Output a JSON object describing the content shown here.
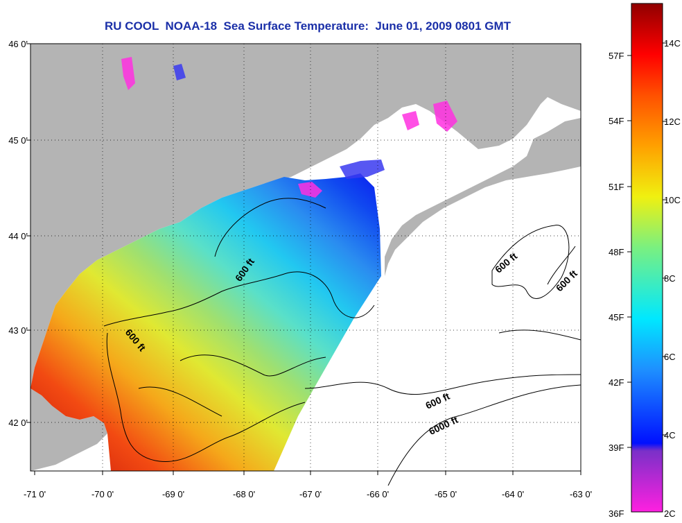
{
  "title": "RU COOL  NOAA-18  Sea Surface Temperature:  June 01, 2009 0801 GMT",
  "lat_ticks": [
    "46 0'",
    "45 0'",
    "44 0'",
    "43 0'",
    "42 0'"
  ],
  "lon_ticks": [
    "-71 0'",
    "-70 0'",
    "-69 0'",
    "-68 0'",
    "-67 0'",
    "-66 0'",
    "-65 0'",
    "-64 0'",
    "-63 0'"
  ],
  "depth_labels": [
    "600 ft",
    "600 ft",
    "600 ft",
    "600 ft",
    "600 ft",
    "6000 ft"
  ],
  "colorbar": {
    "fahrenheit": [
      "57F",
      "54F",
      "51F",
      "48F",
      "45F",
      "42F",
      "39F",
      "36F"
    ],
    "celsius": [
      "14C",
      "12C",
      "10C",
      "8C",
      "6C",
      "4C",
      "2C"
    ]
  },
  "colors": {
    "land": "#b4b4b4",
    "ocean_nodata": "#ffffff",
    "title": "#1a2fa8",
    "warm": "#c4100a",
    "cold": "#0a1cf0"
  }
}
